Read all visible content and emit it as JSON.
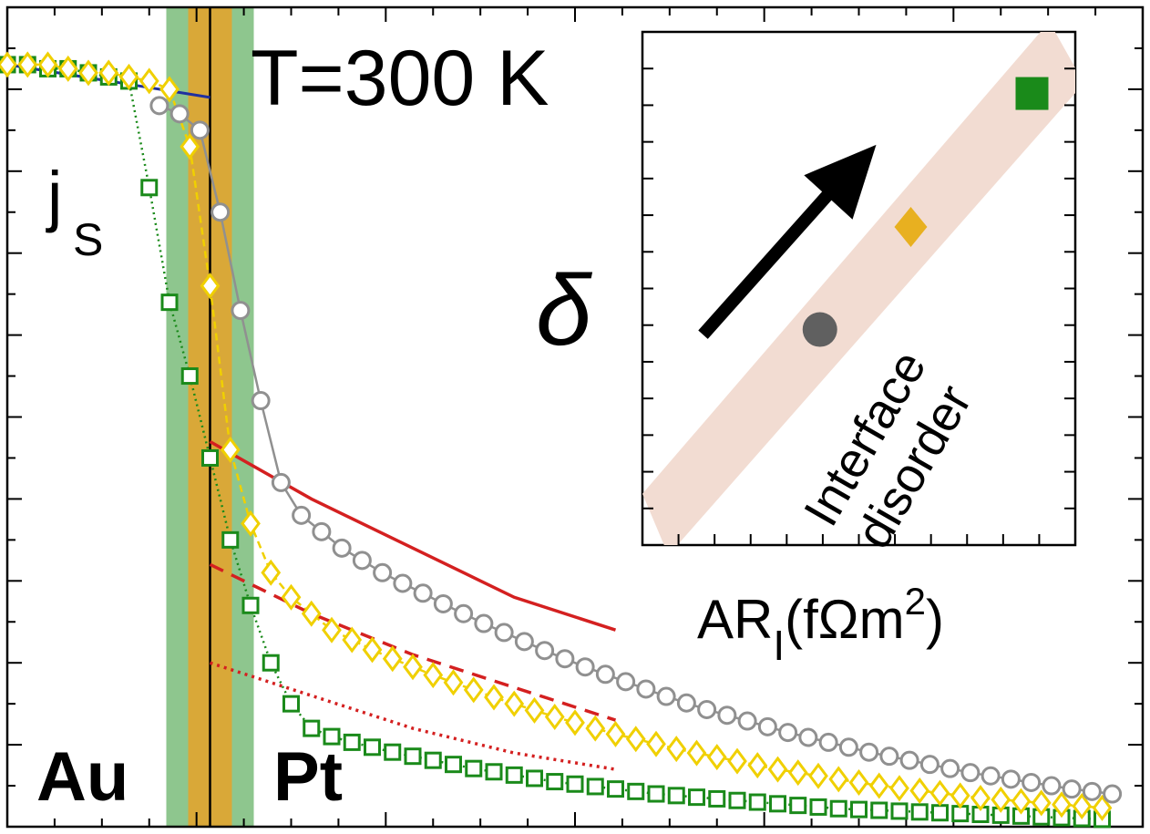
{
  "chart_data": [
    {
      "type": "line",
      "title": "T=300 K",
      "xlabel": "",
      "ylabel": "",
      "y_axis_label": "j",
      "y_axis_label_sub": "S",
      "region_labels": [
        "Au",
        "Pt"
      ],
      "interface_x": 0,
      "xlim": [
        -1.0,
        4.6
      ],
      "ylim": [
        0.0,
        1.0
      ],
      "colors": {
        "circles": "#909090",
        "diamonds": "#f0d000",
        "squares": "#1a8a1a",
        "fit": "#d42020",
        "au_fit": "#2030a0",
        "interface_green": "#8ec68e",
        "interface_orange": "#d9a838"
      },
      "series": [
        {
          "marker": "circle",
          "x": [
            -0.25,
            -0.15,
            -0.05,
            0.05,
            0.15,
            0.25,
            0.35,
            0.45,
            0.55,
            0.65,
            0.75,
            0.85,
            0.95,
            1.05,
            1.15,
            1.25,
            1.35,
            1.45,
            1.55,
            1.65,
            1.75,
            1.85,
            1.95,
            2.05,
            2.15,
            2.25,
            2.35,
            2.45,
            2.55,
            2.65,
            2.75,
            2.85,
            2.95,
            3.05,
            3.15,
            3.25,
            3.35,
            3.45,
            3.55,
            3.65,
            3.75,
            3.85,
            3.95,
            4.05,
            4.15,
            4.25,
            4.35,
            4.45
          ],
          "y": [
            0.88,
            0.87,
            0.85,
            0.75,
            0.63,
            0.52,
            0.42,
            0.38,
            0.36,
            0.34,
            0.325,
            0.31,
            0.297,
            0.285,
            0.272,
            0.26,
            0.248,
            0.237,
            0.226,
            0.215,
            0.205,
            0.195,
            0.186,
            0.177,
            0.168,
            0.159,
            0.151,
            0.143,
            0.136,
            0.129,
            0.122,
            0.115,
            0.109,
            0.103,
            0.097,
            0.091,
            0.086,
            0.081,
            0.076,
            0.071,
            0.066,
            0.062,
            0.058,
            0.054,
            0.05,
            0.046,
            0.043,
            0.04
          ]
        },
        {
          "marker": "diamond",
          "x": [
            -1.0,
            -0.9,
            -0.8,
            -0.7,
            -0.6,
            -0.5,
            -0.4,
            -0.3,
            -0.2,
            -0.1,
            0.0,
            0.1,
            0.2,
            0.3,
            0.4,
            0.5,
            0.6,
            0.7,
            0.8,
            0.9,
            1.0,
            1.1,
            1.2,
            1.3,
            1.4,
            1.5,
            1.6,
            1.7,
            1.8,
            1.9,
            2.0,
            2.1,
            2.2,
            2.3,
            2.4,
            2.5,
            2.6,
            2.7,
            2.8,
            2.9,
            3.0,
            3.1,
            3.2,
            3.3,
            3.4,
            3.5,
            3.6,
            3.7,
            3.8,
            3.9,
            4.0,
            4.1,
            4.2,
            4.3,
            4.4
          ],
          "y": [
            0.93,
            0.93,
            0.93,
            0.925,
            0.92,
            0.92,
            0.915,
            0.91,
            0.9,
            0.83,
            0.66,
            0.46,
            0.37,
            0.31,
            0.28,
            0.26,
            0.24,
            0.228,
            0.216,
            0.205,
            0.195,
            0.185,
            0.176,
            0.167,
            0.158,
            0.15,
            0.142,
            0.134,
            0.127,
            0.12,
            0.113,
            0.107,
            0.101,
            0.095,
            0.09,
            0.085,
            0.08,
            0.075,
            0.07,
            0.066,
            0.062,
            0.058,
            0.054,
            0.05,
            0.047,
            0.044,
            0.041,
            0.038,
            0.035,
            0.033,
            0.031,
            0.029,
            0.027,
            0.025,
            0.023
          ]
        },
        {
          "marker": "square",
          "x": [
            -1.0,
            -0.9,
            -0.8,
            -0.7,
            -0.6,
            -0.5,
            -0.4,
            -0.3,
            -0.2,
            -0.1,
            0.0,
            0.1,
            0.2,
            0.3,
            0.4,
            0.5,
            0.6,
            0.7,
            0.8,
            0.9,
            1.0,
            1.1,
            1.2,
            1.3,
            1.4,
            1.5,
            1.6,
            1.7,
            1.8,
            1.9,
            2.0,
            2.1,
            2.2,
            2.3,
            2.4,
            2.5,
            2.6,
            2.7,
            2.8,
            2.9,
            3.0,
            3.1,
            3.2,
            3.3,
            3.4,
            3.5,
            3.6,
            3.7,
            3.8,
            3.9,
            4.0,
            4.1,
            4.2,
            4.3,
            4.4
          ],
          "y": [
            0.93,
            0.93,
            0.925,
            0.925,
            0.92,
            0.915,
            0.91,
            0.78,
            0.64,
            0.55,
            0.45,
            0.35,
            0.27,
            0.2,
            0.15,
            0.12,
            0.11,
            0.103,
            0.097,
            0.091,
            0.086,
            0.081,
            0.076,
            0.071,
            0.067,
            0.063,
            0.059,
            0.055,
            0.052,
            0.049,
            0.046,
            0.043,
            0.04,
            0.038,
            0.036,
            0.034,
            0.032,
            0.03,
            0.028,
            0.026,
            0.024,
            0.022,
            0.021,
            0.02,
            0.019,
            0.018,
            0.017,
            0.016,
            0.015,
            0.014,
            0.013,
            0.012,
            0.011,
            0.01,
            0.009
          ]
        }
      ],
      "fit_lines": [
        {
          "style": "solid",
          "x": [
            0.0,
            0.5,
            1.0,
            1.5,
            2.0
          ],
          "y": [
            0.47,
            0.4,
            0.34,
            0.28,
            0.24
          ]
        },
        {
          "style": "dashed",
          "x": [
            0.0,
            0.5,
            1.0,
            1.5,
            2.0
          ],
          "y": [
            0.32,
            0.26,
            0.21,
            0.17,
            0.13
          ]
        },
        {
          "style": "dotted",
          "x": [
            0.0,
            0.5,
            1.0,
            1.5,
            2.0
          ],
          "y": [
            0.2,
            0.16,
            0.12,
            0.09,
            0.07
          ]
        }
      ],
      "au_fit_line": {
        "x": [
          -1.0,
          0.0
        ],
        "y": [
          0.93,
          0.89
        ]
      }
    },
    {
      "type": "scatter",
      "xlabel_main": "AR",
      "xlabel_sub": "I",
      "xlabel_unit": "(fΩm",
      "xlabel_sup": "2",
      "xlabel_close": ")",
      "ylabel": "δ",
      "annotation_line1": "Interface",
      "annotation_line2": "disorder",
      "xlim": [
        0,
        1
      ],
      "ylim": [
        0,
        1
      ],
      "points": [
        {
          "marker": "circle",
          "x": 0.41,
          "y": 0.42,
          "color": "#606060"
        },
        {
          "marker": "diamond",
          "x": 0.62,
          "y": 0.62,
          "color": "#e8b020"
        },
        {
          "marker": "square",
          "x": 0.9,
          "y": 0.88,
          "color": "#1a8a1a"
        }
      ]
    }
  ]
}
